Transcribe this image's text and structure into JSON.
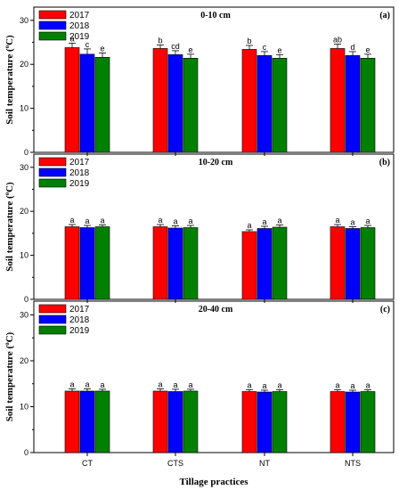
{
  "chart_data": [
    {
      "type": "bar",
      "title": "0-10 cm",
      "panel_label": "(a)",
      "ylabel_main": "Soil temperature (",
      "ylabel_sup": "o",
      "ylabel_end": "C)",
      "ylim": [
        0,
        33
      ],
      "yticks": [
        0,
        10,
        20,
        30
      ],
      "categories": [
        "CT",
        "CTS",
        "NT",
        "NTS"
      ],
      "legend_position": "top-left",
      "series": [
        {
          "name": "2017",
          "color": "#ff0000",
          "values": [
            23.8,
            23.6,
            23.4,
            23.6
          ],
          "errors": [
            1.0,
            0.8,
            0.9,
            1.0
          ],
          "letters": [
            "a",
            "b",
            "b",
            "ab"
          ]
        },
        {
          "name": "2018",
          "color": "#0000ff",
          "values": [
            22.3,
            22.2,
            22.0,
            22.0
          ],
          "errors": [
            1.2,
            0.9,
            0.9,
            0.9
          ],
          "letters": [
            "c",
            "cd",
            "c",
            "d"
          ]
        },
        {
          "name": "2019",
          "color": "#008000",
          "values": [
            21.6,
            21.4,
            21.4,
            21.4
          ],
          "errors": [
            1.0,
            0.9,
            0.8,
            0.9
          ],
          "letters": [
            "e",
            "e",
            "e",
            "e"
          ]
        }
      ]
    },
    {
      "type": "bar",
      "title": "10-20 cm",
      "panel_label": "(b)",
      "ylabel_main": "Soil temperature (",
      "ylabel_sup": "o",
      "ylabel_end": "C)",
      "ylim": [
        0,
        33
      ],
      "yticks": [
        0,
        10,
        20,
        30
      ],
      "categories": [
        "CT",
        "CTS",
        "NT",
        "NTS"
      ],
      "legend_position": "top-left",
      "series": [
        {
          "name": "2017",
          "color": "#ff0000",
          "values": [
            16.5,
            16.5,
            15.4,
            16.5
          ],
          "errors": [
            0.5,
            0.5,
            0.4,
            0.5
          ],
          "letters": [
            "a",
            "a",
            "a",
            "a"
          ]
        },
        {
          "name": "2018",
          "color": "#0000ff",
          "values": [
            16.3,
            16.2,
            16.1,
            16.1
          ],
          "errors": [
            0.5,
            0.5,
            0.5,
            0.4
          ],
          "letters": [
            "a",
            "a",
            "a",
            "a"
          ]
        },
        {
          "name": "2019",
          "color": "#008000",
          "values": [
            16.5,
            16.3,
            16.4,
            16.3
          ],
          "errors": [
            0.4,
            0.5,
            0.5,
            0.5
          ],
          "letters": [
            "a",
            "a",
            "a",
            "a"
          ]
        }
      ]
    },
    {
      "type": "bar",
      "title": "20-40 cm",
      "panel_label": "(c)",
      "ylabel_main": "Soil temperature (",
      "ylabel_sup": "o",
      "ylabel_end": "C)",
      "xlabel": "Tillage practices",
      "ylim": [
        0,
        33
      ],
      "yticks": [
        0,
        10,
        20,
        30
      ],
      "categories": [
        "CT",
        "CTS",
        "NT",
        "NTS"
      ],
      "legend_position": "top-left",
      "series": [
        {
          "name": "2017",
          "color": "#ff0000",
          "values": [
            13.4,
            13.4,
            13.3,
            13.3
          ],
          "errors": [
            0.5,
            0.5,
            0.4,
            0.4
          ],
          "letters": [
            "a",
            "a",
            "a",
            "a"
          ]
        },
        {
          "name": "2018",
          "color": "#0000ff",
          "values": [
            13.4,
            13.3,
            13.2,
            13.2
          ],
          "errors": [
            0.5,
            0.5,
            0.4,
            0.4
          ],
          "letters": [
            "a",
            "a",
            "a",
            "a"
          ]
        },
        {
          "name": "2019",
          "color": "#008000",
          "values": [
            13.4,
            13.4,
            13.3,
            13.3
          ],
          "errors": [
            0.4,
            0.4,
            0.4,
            0.4
          ],
          "letters": [
            "a",
            "a",
            "a",
            "a"
          ]
        }
      ]
    }
  ]
}
